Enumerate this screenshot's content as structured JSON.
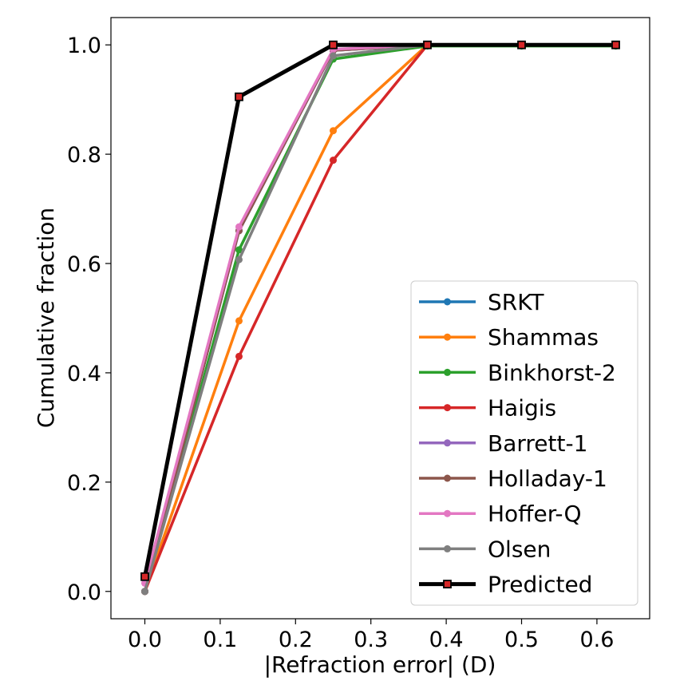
{
  "chart_data": {
    "type": "line",
    "xlabel": "|Refraction error| (D)",
    "ylabel": "Cumulative fraction",
    "xlim": [
      -0.045,
      0.67
    ],
    "ylim": [
      -0.05,
      1.05
    ],
    "xticks": [
      "0.0",
      "0.1",
      "0.2",
      "0.3",
      "0.4",
      "0.5",
      "0.6"
    ],
    "yticks": [
      "0.0",
      "0.2",
      "0.4",
      "0.6",
      "0.8",
      "1.0"
    ],
    "grid": false,
    "legend_position": "lower-right",
    "x": [
      0.0,
      0.125,
      0.25,
      0.375,
      0.5,
      0.625
    ],
    "series": [
      {
        "name": "SRKT",
        "color": "#1f77b4",
        "marker": "circle",
        "values": [
          0.0,
          0.66,
          0.99,
          1.0,
          1.0,
          1.0
        ]
      },
      {
        "name": "Shammas",
        "color": "#ff7f0e",
        "marker": "circle",
        "values": [
          0.0,
          0.495,
          0.843,
          1.0,
          1.0,
          1.0
        ]
      },
      {
        "name": "Binkhorst-2",
        "color": "#2ca02c",
        "marker": "circle",
        "values": [
          0.0,
          0.625,
          0.974,
          0.998,
          0.998,
          0.998
        ]
      },
      {
        "name": "Haigis",
        "color": "#d62728",
        "marker": "circle",
        "values": [
          0.0,
          0.43,
          0.789,
          1.0,
          1.0,
          1.0
        ]
      },
      {
        "name": "Barrett-1",
        "color": "#9467bd",
        "marker": "circle",
        "values": [
          0.0,
          0.66,
          0.99,
          1.0,
          1.0,
          1.0
        ]
      },
      {
        "name": "Holladay-1",
        "color": "#8c564b",
        "marker": "circle",
        "values": [
          0.0,
          0.66,
          0.99,
          1.0,
          1.0,
          1.0
        ]
      },
      {
        "name": "Hoffer-Q",
        "color": "#e377c2",
        "marker": "circle",
        "values": [
          0.015,
          0.667,
          0.992,
          1.0,
          1.0,
          1.0
        ]
      },
      {
        "name": "Olsen",
        "color": "#7f7f7f",
        "marker": "circle",
        "values": [
          0.0,
          0.607,
          0.98,
          1.0,
          1.0,
          1.0
        ]
      },
      {
        "name": "Predicted",
        "color": "#000000",
        "marker": "square",
        "marker_face": "#d62728",
        "values": [
          0.027,
          0.905,
          1.0,
          1.0,
          1.0,
          1.0
        ]
      }
    ]
  }
}
